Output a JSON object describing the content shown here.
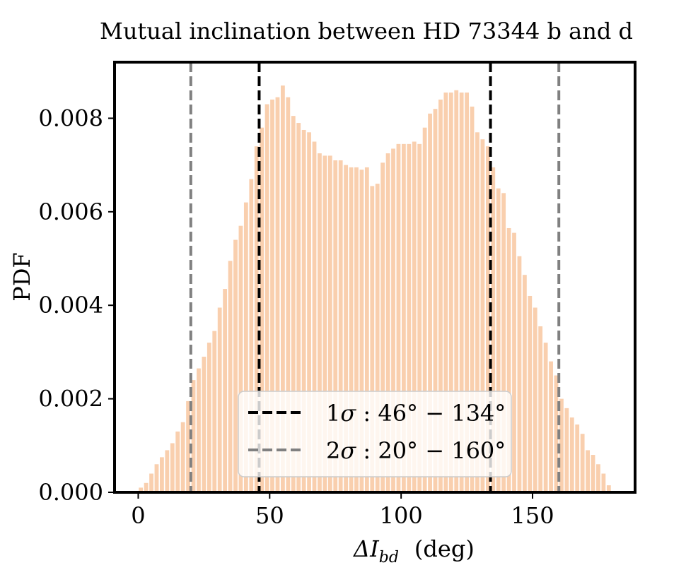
{
  "chart_data": {
    "type": "bar",
    "title": "Mutual inclination between HD 73344 b and d",
    "xlabel_symbol": "ΔI",
    "xlabel_subscript": "bd",
    "xlabel_unit": "(deg)",
    "ylabel": "PDF",
    "xlim": [
      -9,
      189
    ],
    "ylim": [
      0,
      0.0092
    ],
    "x_ticks": [
      0,
      50,
      100,
      150
    ],
    "x_tick_labels": [
      "0",
      "50",
      "100",
      "150"
    ],
    "y_ticks": [
      0,
      0.002,
      0.004,
      0.006,
      0.008
    ],
    "y_tick_labels": [
      "0.000",
      "0.002",
      "0.004",
      "0.006",
      "0.008"
    ],
    "bin_width": 2,
    "bar_color": "#f9cfae",
    "bins": [
      1,
      3,
      5,
      7,
      9,
      11,
      13,
      15,
      17,
      19,
      21,
      23,
      25,
      27,
      29,
      31,
      33,
      35,
      37,
      39,
      41,
      43,
      45,
      47,
      49,
      51,
      53,
      55,
      57,
      59,
      61,
      63,
      65,
      67,
      69,
      71,
      73,
      75,
      77,
      79,
      81,
      83,
      85,
      87,
      89,
      91,
      93,
      95,
      97,
      99,
      101,
      103,
      105,
      107,
      109,
      111,
      113,
      115,
      117,
      119,
      121,
      123,
      125,
      127,
      129,
      131,
      133,
      135,
      137,
      139,
      141,
      143,
      145,
      147,
      149,
      151,
      153,
      155,
      157,
      159,
      161,
      163,
      165,
      167,
      169,
      171,
      173,
      175,
      177,
      179
    ],
    "values": [
      0.0001,
      0.0002,
      0.0004,
      0.0006,
      0.00075,
      0.0009,
      0.00105,
      0.0013,
      0.0015,
      0.00195,
      0.0024,
      0.00265,
      0.0029,
      0.0032,
      0.00345,
      0.00395,
      0.00435,
      0.00495,
      0.0054,
      0.0057,
      0.0062,
      0.0067,
      0.0074,
      0.0078,
      0.0083,
      0.0084,
      0.00845,
      0.0087,
      0.00845,
      0.00805,
      0.0079,
      0.00775,
      0.0077,
      0.0075,
      0.00725,
      0.0072,
      0.0072,
      0.0071,
      0.0071,
      0.007,
      0.00695,
      0.00695,
      0.0069,
      0.00695,
      0.00655,
      0.0066,
      0.00705,
      0.00725,
      0.00735,
      0.00745,
      0.00745,
      0.00745,
      0.0075,
      0.00745,
      0.0078,
      0.0081,
      0.0082,
      0.0084,
      0.00855,
      0.00855,
      0.0086,
      0.00855,
      0.00855,
      0.00825,
      0.0077,
      0.00755,
      0.0074,
      0.00695,
      0.0065,
      0.0064,
      0.00565,
      0.00555,
      0.00505,
      0.00465,
      0.0042,
      0.00395,
      0.00355,
      0.0032,
      0.0028,
      0.0025,
      0.002,
      0.0018,
      0.0016,
      0.00145,
      0.00125,
      0.0009,
      0.0008,
      0.0006,
      0.0004,
      0.00015
    ],
    "vlines": [
      {
        "x": 46,
        "color": "#000000",
        "style": "dashed"
      },
      {
        "x": 134,
        "color": "#000000",
        "style": "dashed"
      },
      {
        "x": 20,
        "color": "#808080",
        "style": "dashed"
      },
      {
        "x": 160,
        "color": "#808080",
        "style": "dashed"
      }
    ],
    "legend": {
      "placement": "lower-center",
      "entries": [
        {
          "sigma": "1",
          "symbol": "σ",
          "range": " : 46° − 134°",
          "color": "#000000"
        },
        {
          "sigma": "2",
          "symbol": "σ",
          "range": " : 20° − 160°",
          "color": "#808080"
        }
      ]
    }
  }
}
